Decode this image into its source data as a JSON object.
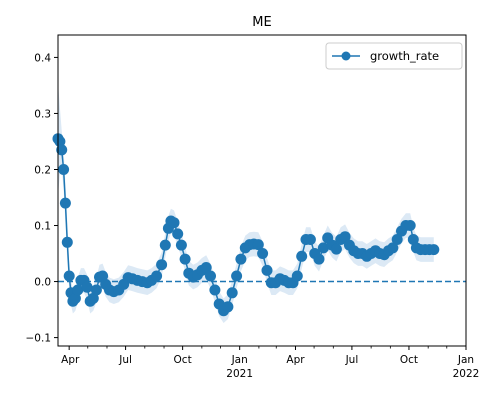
{
  "chart_data": {
    "type": "line",
    "title": "ME",
    "xlabel": "",
    "ylabel": "",
    "x_range": [
      "2020-03-14",
      "2022-01-01"
    ],
    "ylim": [
      -0.115,
      0.44
    ],
    "y_ticks": [
      -0.1,
      0.0,
      0.1,
      0.2,
      0.3,
      0.4
    ],
    "y_tick_labels": [
      "−0.1",
      "0.0",
      "0.1",
      "0.2",
      "0.3",
      "0.4"
    ],
    "x_ticks": [
      {
        "date": "2020-04-01",
        "label": "Apr",
        "sublabel": ""
      },
      {
        "date": "2020-07-01",
        "label": "Jul",
        "sublabel": ""
      },
      {
        "date": "2020-10-01",
        "label": "Oct",
        "sublabel": ""
      },
      {
        "date": "2021-01-01",
        "label": "Jan",
        "sublabel": "2021"
      },
      {
        "date": "2021-04-01",
        "label": "Apr",
        "sublabel": ""
      },
      {
        "date": "2021-07-01",
        "label": "Jul",
        "sublabel": ""
      },
      {
        "date": "2021-10-01",
        "label": "Oct",
        "sublabel": ""
      },
      {
        "date": "2022-01-01",
        "label": "Jan",
        "sublabel": "2022"
      }
    ],
    "grid": false,
    "legend_position": "top-right",
    "reference_line": {
      "y": 0.0,
      "style": "dashed"
    },
    "series": [
      {
        "name": "growth_rate",
        "color": "#1f77b4",
        "band_color": "#dce9f5",
        "points": [
          {
            "x": "2020-03-14",
            "y": 0.255
          },
          {
            "x": "2020-03-17",
            "y": 0.25
          },
          {
            "x": "2020-03-20",
            "y": 0.235
          },
          {
            "x": "2020-03-23",
            "y": 0.2
          },
          {
            "x": "2020-03-26",
            "y": 0.14
          },
          {
            "x": "2020-03-29",
            "y": 0.07
          },
          {
            "x": "2020-04-01",
            "y": 0.01
          },
          {
            "x": "2020-04-04",
            "y": -0.02
          },
          {
            "x": "2020-04-07",
            "y": -0.035
          },
          {
            "x": "2020-04-11",
            "y": -0.03
          },
          {
            "x": "2020-04-15",
            "y": -0.015
          },
          {
            "x": "2020-04-20",
            "y": 0.002
          },
          {
            "x": "2020-04-25",
            "y": 0.002
          },
          {
            "x": "2020-04-30",
            "y": -0.01
          },
          {
            "x": "2020-05-05",
            "y": -0.035
          },
          {
            "x": "2020-05-10",
            "y": -0.03
          },
          {
            "x": "2020-05-15",
            "y": -0.015
          },
          {
            "x": "2020-05-20",
            "y": 0.008
          },
          {
            "x": "2020-05-25",
            "y": 0.01
          },
          {
            "x": "2020-05-30",
            "y": -0.005
          },
          {
            "x": "2020-06-05",
            "y": -0.015
          },
          {
            "x": "2020-06-12",
            "y": -0.018
          },
          {
            "x": "2020-06-20",
            "y": -0.015
          },
          {
            "x": "2020-06-28",
            "y": -0.005
          },
          {
            "x": "2020-07-05",
            "y": 0.007
          },
          {
            "x": "2020-07-12",
            "y": 0.005
          },
          {
            "x": "2020-07-20",
            "y": 0.002
          },
          {
            "x": "2020-07-28",
            "y": 0.0
          },
          {
            "x": "2020-08-05",
            "y": -0.002
          },
          {
            "x": "2020-08-12",
            "y": 0.002
          },
          {
            "x": "2020-08-20",
            "y": 0.01
          },
          {
            "x": "2020-08-28",
            "y": 0.03
          },
          {
            "x": "2020-09-03",
            "y": 0.065
          },
          {
            "x": "2020-09-08",
            "y": 0.095
          },
          {
            "x": "2020-09-12",
            "y": 0.108
          },
          {
            "x": "2020-09-17",
            "y": 0.105
          },
          {
            "x": "2020-09-23",
            "y": 0.085
          },
          {
            "x": "2020-09-29",
            "y": 0.065
          },
          {
            "x": "2020-10-05",
            "y": 0.04
          },
          {
            "x": "2020-10-11",
            "y": 0.015
          },
          {
            "x": "2020-10-18",
            "y": 0.008
          },
          {
            "x": "2020-10-25",
            "y": 0.012
          },
          {
            "x": "2020-11-01",
            "y": 0.02
          },
          {
            "x": "2020-11-08",
            "y": 0.025
          },
          {
            "x": "2020-11-15",
            "y": 0.01
          },
          {
            "x": "2020-11-22",
            "y": -0.015
          },
          {
            "x": "2020-11-29",
            "y": -0.04
          },
          {
            "x": "2020-12-06",
            "y": -0.052
          },
          {
            "x": "2020-12-13",
            "y": -0.045
          },
          {
            "x": "2020-12-20",
            "y": -0.02
          },
          {
            "x": "2020-12-27",
            "y": 0.01
          },
          {
            "x": "2021-01-03",
            "y": 0.04
          },
          {
            "x": "2021-01-10",
            "y": 0.06
          },
          {
            "x": "2021-01-17",
            "y": 0.066
          },
          {
            "x": "2021-01-24",
            "y": 0.067
          },
          {
            "x": "2021-01-31",
            "y": 0.066
          },
          {
            "x": "2021-02-07",
            "y": 0.05
          },
          {
            "x": "2021-02-14",
            "y": 0.02
          },
          {
            "x": "2021-02-21",
            "y": -0.002
          },
          {
            "x": "2021-02-28",
            "y": -0.002
          },
          {
            "x": "2021-03-07",
            "y": 0.005
          },
          {
            "x": "2021-03-14",
            "y": 0.002
          },
          {
            "x": "2021-03-21",
            "y": -0.002
          },
          {
            "x": "2021-03-28",
            "y": -0.002
          },
          {
            "x": "2021-04-04",
            "y": 0.01
          },
          {
            "x": "2021-04-11",
            "y": 0.045
          },
          {
            "x": "2021-04-18",
            "y": 0.075
          },
          {
            "x": "2021-04-25",
            "y": 0.075
          },
          {
            "x": "2021-05-02",
            "y": 0.05
          },
          {
            "x": "2021-05-09",
            "y": 0.04
          },
          {
            "x": "2021-05-16",
            "y": 0.06
          },
          {
            "x": "2021-05-23",
            "y": 0.078
          },
          {
            "x": "2021-05-30",
            "y": 0.065
          },
          {
            "x": "2021-06-06",
            "y": 0.058
          },
          {
            "x": "2021-06-13",
            "y": 0.075
          },
          {
            "x": "2021-06-20",
            "y": 0.08
          },
          {
            "x": "2021-06-27",
            "y": 0.065
          },
          {
            "x": "2021-07-04",
            "y": 0.055
          },
          {
            "x": "2021-07-11",
            "y": 0.05
          },
          {
            "x": "2021-07-18",
            "y": 0.05
          },
          {
            "x": "2021-07-25",
            "y": 0.045
          },
          {
            "x": "2021-08-01",
            "y": 0.05
          },
          {
            "x": "2021-08-08",
            "y": 0.055
          },
          {
            "x": "2021-08-15",
            "y": 0.05
          },
          {
            "x": "2021-08-22",
            "y": 0.048
          },
          {
            "x": "2021-08-29",
            "y": 0.055
          },
          {
            "x": "2021-09-05",
            "y": 0.06
          },
          {
            "x": "2021-09-12",
            "y": 0.075
          },
          {
            "x": "2021-09-19",
            "y": 0.09
          },
          {
            "x": "2021-09-26",
            "y": 0.1
          },
          {
            "x": "2021-10-03",
            "y": 0.1
          },
          {
            "x": "2021-10-08",
            "y": 0.075
          },
          {
            "x": "2021-10-13",
            "y": 0.06
          },
          {
            "x": "2021-10-20",
            "y": 0.057
          },
          {
            "x": "2021-10-27",
            "y": 0.057
          },
          {
            "x": "2021-11-03",
            "y": 0.057
          },
          {
            "x": "2021-11-10",
            "y": 0.057
          }
        ]
      }
    ]
  }
}
